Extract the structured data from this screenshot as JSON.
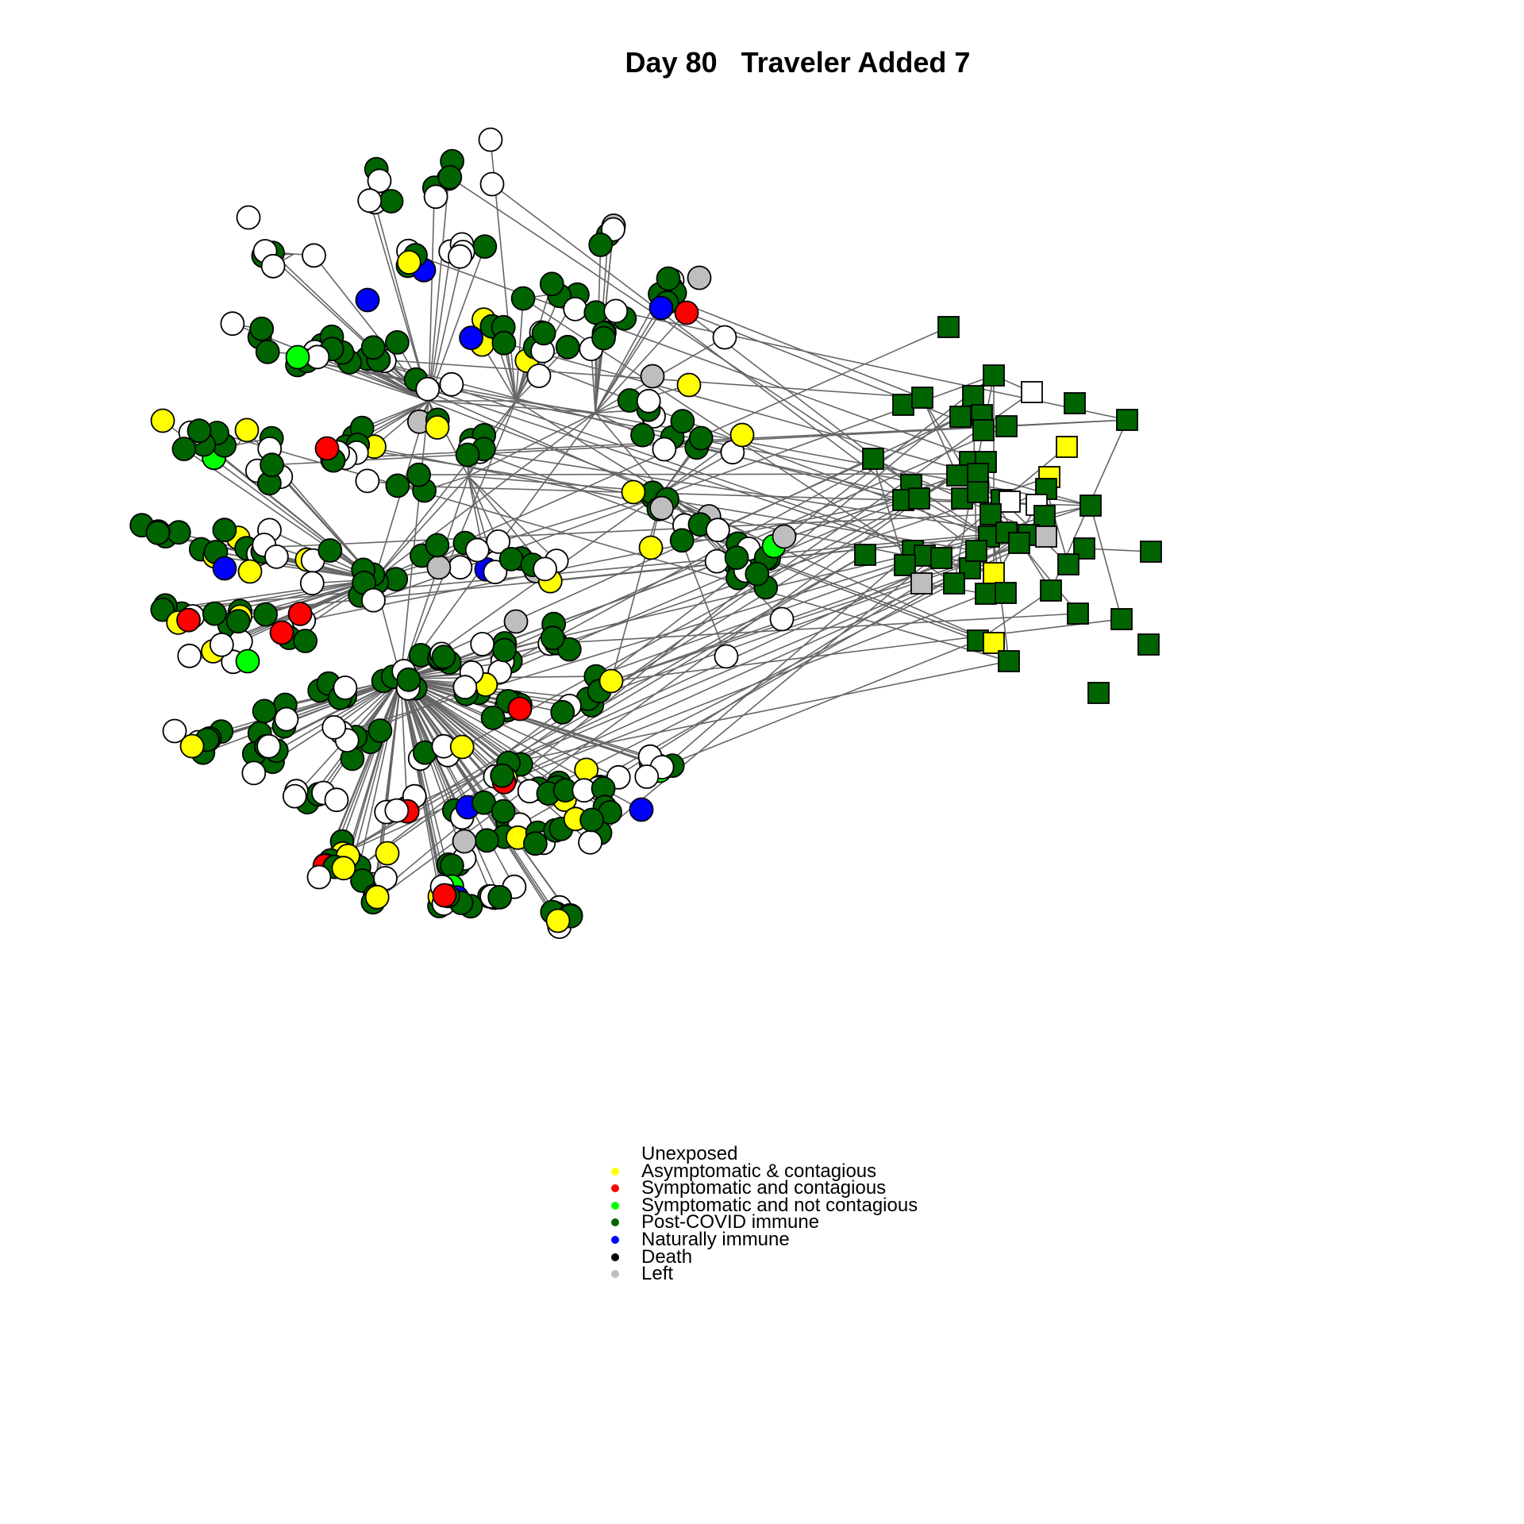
{
  "title": "Day 80   Traveler Added 7",
  "legend": {
    "items": [
      {
        "label": "Unexposed",
        "color": "#ffffff"
      },
      {
        "label": "Asymptomatic & contagious",
        "color": "#ffff00"
      },
      {
        "label": "Symptomatic and contagious",
        "color": "#ff0000"
      },
      {
        "label": "Symptomatic and not contagious",
        "color": "#00ff00"
      },
      {
        "label": "Post-COVID immune",
        "color": "#006400"
      },
      {
        "label": "Naturally immune",
        "color": "#0000ff"
      },
      {
        "label": "Death",
        "color": "#000000"
      },
      {
        "label": "Left",
        "color": "#bebebe"
      }
    ]
  },
  "colors": {
    "edge": "#666666",
    "node_border": "#000000",
    "unexposed": "#ffffff",
    "asymptomatic": "#ffff00",
    "symptomatic_contagious": "#ff0000",
    "symptomatic_not_contagious": "#00ff00",
    "post_covid_immune": "#006400",
    "naturally_immune": "#0000ff",
    "death": "#000000",
    "left": "#bebebe"
  },
  "node_shapes": {
    "residents": "circle",
    "travelers": "square"
  }
}
